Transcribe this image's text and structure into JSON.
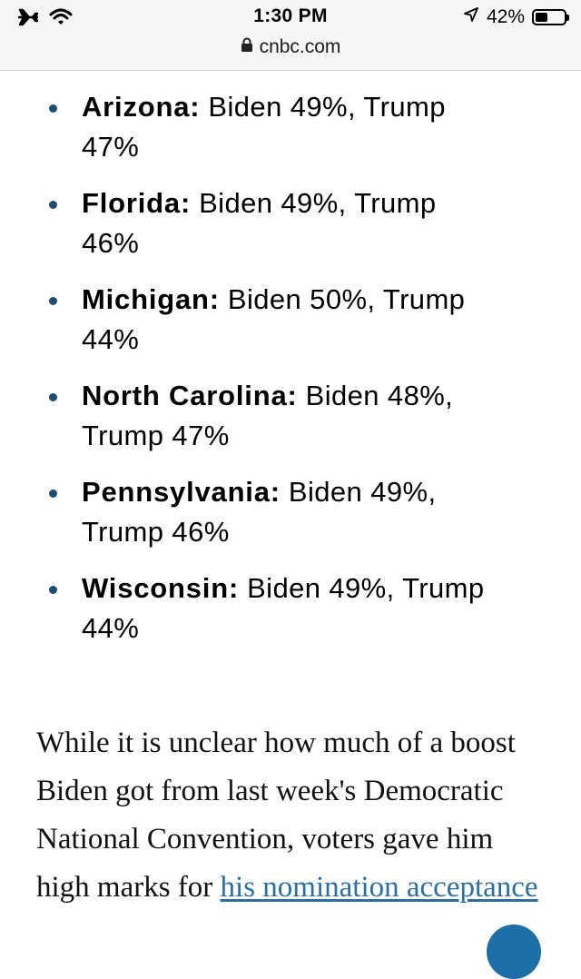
{
  "status_bar": {
    "time": "1:30 PM",
    "battery": "42%",
    "battery_level": 0.42,
    "icons": [
      "airplane-icon",
      "wifi-icon",
      "location-arrow-icon",
      "battery-icon",
      "lock-icon"
    ]
  },
  "browser": {
    "url": "cnbc.com"
  },
  "polls": [
    {
      "state": "Arizona:",
      "line1": " Biden 49%, Trump",
      "line2": "47%"
    },
    {
      "state": "Florida:",
      "line1": " Biden 49%, Trump",
      "line2": "46%"
    },
    {
      "state": "Michigan:",
      "line1": " Biden 50%, Trump",
      "line2": "44%"
    },
    {
      "state": "North Carolina:",
      "line1": " Biden 48%,",
      "line2": "Trump 47%"
    },
    {
      "state": "Pennsylvania:",
      "line1": " Biden 49%,",
      "line2": "Trump 46%"
    },
    {
      "state": "Wisconsin:",
      "line1": " Biden 49%, Trump",
      "line2": "44%"
    }
  ],
  "article": {
    "paragraph_text": "While it is unclear how much of a boost Biden got from last week's Democratic National Convention, voters gave him high marks for ",
    "link_text": "his nomination acceptance"
  },
  "colors": {
    "bullet": "#1d4b72",
    "link": "#2a6ea3",
    "status_bar_bg": "#f6f6f6"
  }
}
